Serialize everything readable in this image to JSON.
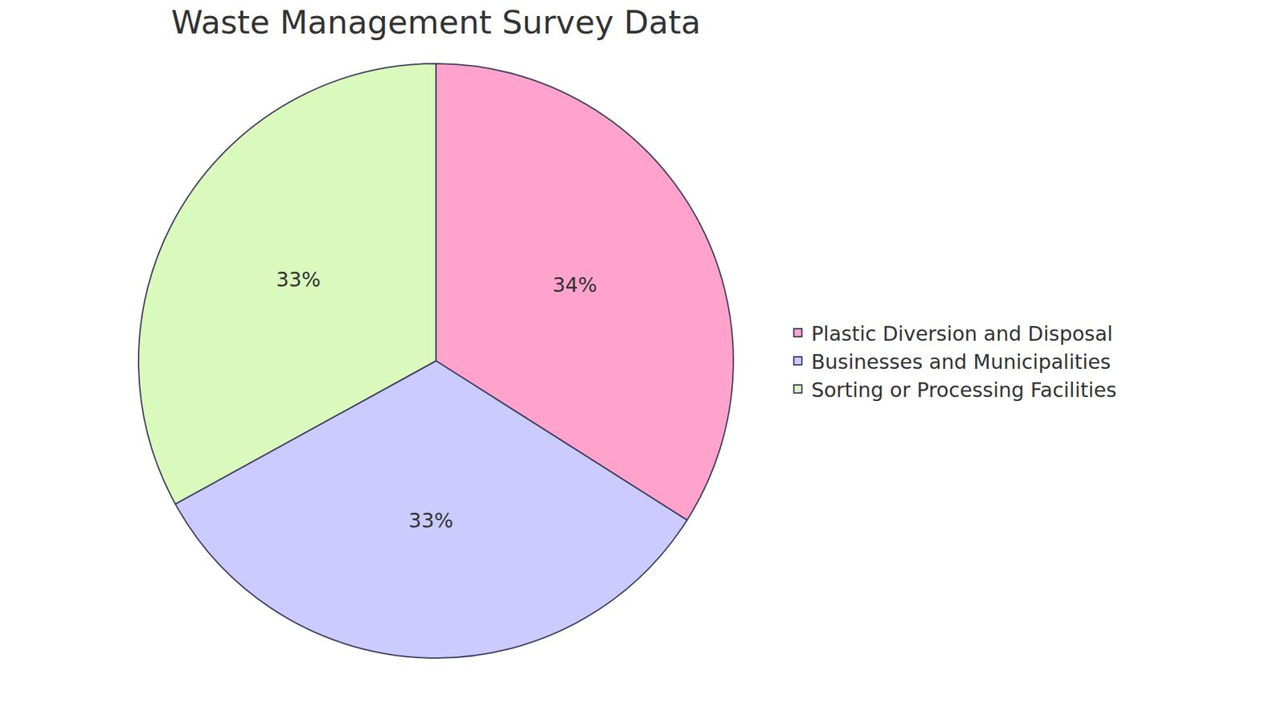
{
  "chart_data": {
    "type": "pie",
    "title": "Waste Management Survey Data",
    "categories": [
      "Plastic Diversion and Disposal",
      "Businesses and Municipalities",
      "Sorting or Processing Facilities"
    ],
    "values": [
      34,
      33,
      33
    ],
    "value_labels": [
      "34%",
      "33%",
      "33%"
    ],
    "colors": [
      "#FFA3CD",
      "#CBCBFF",
      "#DAF9BC"
    ],
    "data_labels": true,
    "legend": "right"
  }
}
